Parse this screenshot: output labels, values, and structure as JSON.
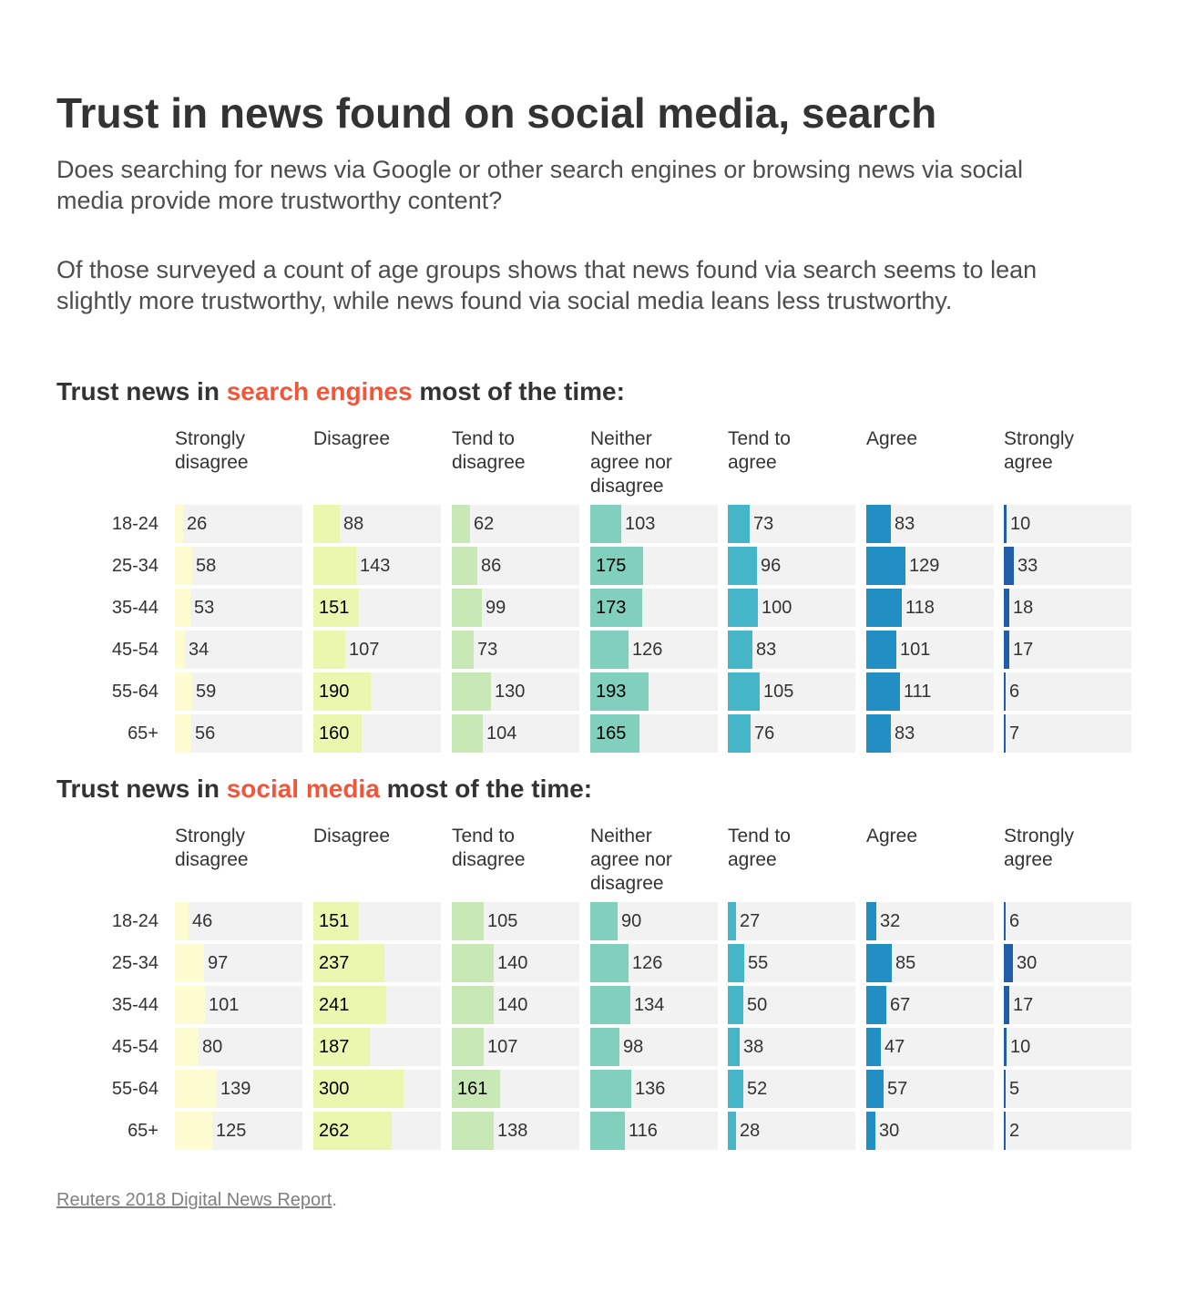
{
  "title": "Trust in news found on social media, search",
  "subtitle": "Does searching for news via Google or other search engines or browsing news via social media provide more trustworthy content?",
  "description": "Of those surveyed a count of age groups shows that news found via search seems to lean slightly more trustworthy, while news found via social media leans less trustworthy.",
  "source": {
    "link_text": "Reuters 2018 Digital News Report",
    "suffix": "."
  },
  "colors": {
    "Strongly disagree": "#fcfcd0",
    "Disagree": "#ebf7ae",
    "Tend to disagree": "#c8e9b6",
    "Neither agree nor disagree": "#80d0bd",
    "Tend to agree": "#45b6c7",
    "Agree": "#218fc3",
    "Strongly agree": "#225ea8",
    "cell_background": "#f2f2f2",
    "highlight": "#f0563a"
  },
  "chart_data": [
    {
      "type": "table",
      "heading_prefix": "Trust news in ",
      "heading_highlight": "search engines",
      "heading_suffix": " most of the time:",
      "columns": [
        "Strongly disagree",
        "Disagree",
        "Tend to disagree",
        "Neither agree nor disagree",
        "Tend to agree",
        "Agree",
        "Strongly agree"
      ],
      "column_headers": [
        "Strongly\ndisagree",
        "Disagree",
        "Tend to\ndisagree",
        "Neither\nagree nor\ndisagree",
        "Tend to\nagree",
        "Agree",
        "Strongly\nagree"
      ],
      "rows": [
        "18-24",
        "25-34",
        "35-44",
        "45-54",
        "55-64",
        "65+"
      ],
      "values": [
        [
          26,
          88,
          62,
          103,
          73,
          83,
          10
        ],
        [
          58,
          143,
          86,
          175,
          96,
          129,
          33
        ],
        [
          53,
          151,
          99,
          173,
          100,
          118,
          18
        ],
        [
          34,
          107,
          73,
          126,
          83,
          101,
          17
        ],
        [
          59,
          190,
          130,
          193,
          105,
          111,
          6
        ],
        [
          56,
          160,
          104,
          165,
          76,
          83,
          7
        ]
      ]
    },
    {
      "type": "table",
      "heading_prefix": "Trust news in ",
      "heading_highlight": "social media",
      "heading_suffix": " most of the time:",
      "columns": [
        "Strongly disagree",
        "Disagree",
        "Tend to disagree",
        "Neither agree nor disagree",
        "Tend to agree",
        "Agree",
        "Strongly agree"
      ],
      "column_headers": [
        "Strongly\ndisagree",
        "Disagree",
        "Tend to\ndisagree",
        "Neither\nagree nor\ndisagree",
        "Tend to\nagree",
        "Agree",
        "Strongly\nagree"
      ],
      "rows": [
        "18-24",
        "25-34",
        "35-44",
        "45-54",
        "55-64",
        "65+"
      ],
      "values": [
        [
          46,
          151,
          105,
          90,
          27,
          32,
          6
        ],
        [
          97,
          237,
          140,
          126,
          55,
          85,
          30
        ],
        [
          101,
          241,
          140,
          134,
          50,
          67,
          17
        ],
        [
          80,
          187,
          107,
          98,
          38,
          47,
          10
        ],
        [
          139,
          300,
          161,
          136,
          52,
          57,
          5
        ],
        [
          125,
          262,
          138,
          116,
          28,
          30,
          2
        ]
      ]
    }
  ]
}
